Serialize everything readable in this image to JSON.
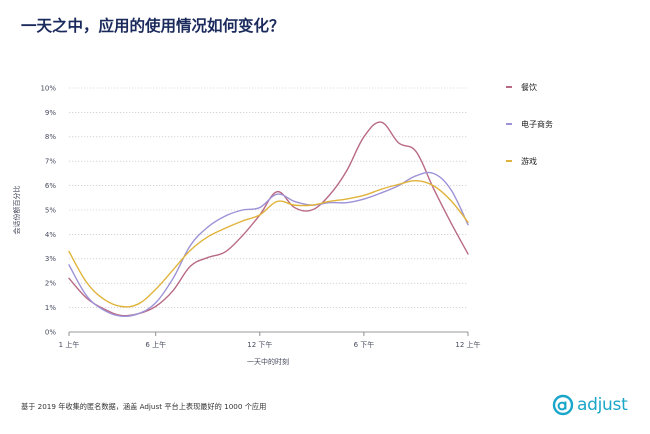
{
  "title": "一天之中，应用的使用情况如何变化？",
  "chart_data": {
    "type": "line",
    "title": "一天之中，应用的使用情况如何变化？",
    "xlabel": "一天中的时刻",
    "ylabel": "会话份额百分比",
    "x": [
      0,
      1,
      2,
      3,
      4,
      5,
      6,
      7,
      8,
      9,
      10,
      11,
      12,
      13,
      14,
      15,
      16,
      17,
      18,
      19,
      20,
      21,
      22,
      23
    ],
    "xticks": [
      {
        "hour": 0,
        "label": "1 上午"
      },
      {
        "hour": 5,
        "label": "6 上午"
      },
      {
        "hour": 11,
        "label": "12 下午"
      },
      {
        "hour": 17,
        "label": "6 下午"
      },
      {
        "hour": 23,
        "label": "12 上午"
      }
    ],
    "ylim": [
      0,
      10
    ],
    "yticks": [
      "0%",
      "1%",
      "2%",
      "3%",
      "4%",
      "5%",
      "6%",
      "7%",
      "8%",
      "9%",
      "10%"
    ],
    "grid": true,
    "series": [
      {
        "name": "餐饮",
        "color": "#b86a85",
        "values": [
          2.2,
          1.4,
          0.95,
          0.68,
          0.75,
          1.05,
          1.7,
          2.7,
          3.05,
          3.28,
          3.95,
          4.8,
          5.75,
          5.1,
          5.0,
          5.6,
          6.6,
          8.0,
          8.6,
          7.75,
          7.4,
          5.9,
          4.5,
          3.2
        ]
      },
      {
        "name": "电子商务",
        "color": "#9d92d6",
        "values": [
          2.75,
          1.5,
          0.9,
          0.65,
          0.75,
          1.2,
          2.2,
          3.55,
          4.3,
          4.75,
          5.0,
          5.1,
          5.65,
          5.35,
          5.2,
          5.3,
          5.3,
          5.45,
          5.7,
          6.0,
          6.4,
          6.5,
          5.85,
          4.4
        ]
      },
      {
        "name": "游戏",
        "color": "#e0b33a",
        "values": [
          3.3,
          2.05,
          1.35,
          1.05,
          1.15,
          1.75,
          2.55,
          3.35,
          3.9,
          4.25,
          4.55,
          4.8,
          5.35,
          5.2,
          5.2,
          5.35,
          5.45,
          5.6,
          5.85,
          6.05,
          6.2,
          6.0,
          5.4,
          4.5
        ]
      }
    ]
  },
  "legend": {
    "items": [
      "餐饮",
      "电子商务",
      "游戏"
    ]
  },
  "footnote": "基于 2019 年收集的匿名数据，涵盖 Adjust 平台上表现最好的 1000 个应用",
  "brand": {
    "wordmark": "adjust",
    "color": "#1aa6c9"
  }
}
